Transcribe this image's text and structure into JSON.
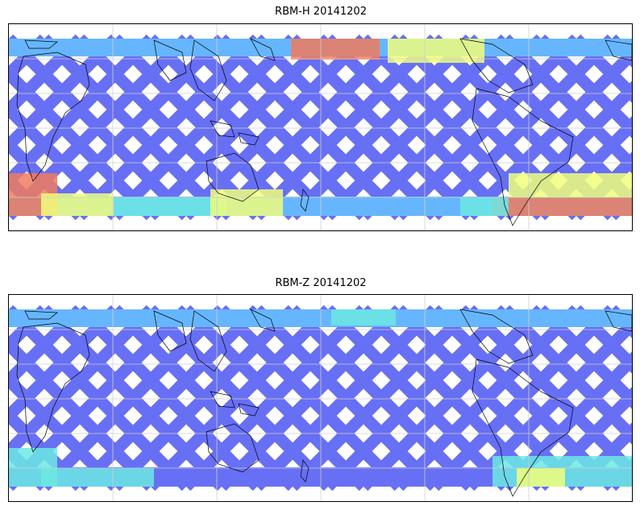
{
  "maps": [
    {
      "title": "RBM-H 20141202"
    },
    {
      "title": "RBM-Z 20141202"
    }
  ],
  "colors": {
    "low": "#5b63f5",
    "mid_low": "#5ab0ff",
    "mid": "#60e6e0",
    "mid_high": "#f0ff70",
    "high": "#f07050",
    "coast": "#000000",
    "grid": "#cfcfcf"
  }
}
